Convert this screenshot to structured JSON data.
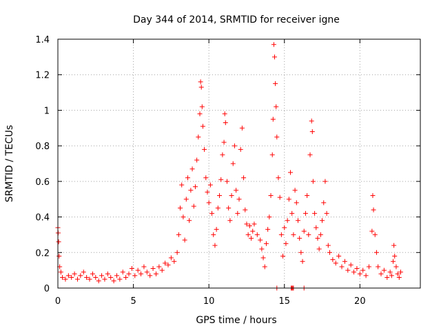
{
  "chart_data": {
    "type": "scatter",
    "title": "Day 344 of 2014, SRMTID for receiver igne",
    "xlabel": "GPS time / hours",
    "ylabel": "SRMTID / TECUs",
    "xlim": [
      0,
      24
    ],
    "ylim": [
      0,
      1.4
    ],
    "xticks": [
      0,
      5,
      10,
      15,
      20
    ],
    "yticks": [
      0,
      0.2,
      0.4,
      0.6,
      0.8,
      1,
      1.2,
      1.4
    ],
    "xtick_labels": [
      "0",
      "5",
      "10",
      "15",
      "20"
    ],
    "ytick_labels": [
      "0",
      "0.2",
      "0.4",
      "0.6",
      "0.8",
      "1",
      "1.2",
      "1.4"
    ],
    "grid": true,
    "marker": "plus",
    "color": "#ff0000",
    "series": [
      {
        "name": "SRMTID",
        "points": [
          [
            0.0,
            0.34
          ],
          [
            0.02,
            0.31
          ],
          [
            0.05,
            0.26
          ],
          [
            0.08,
            0.18
          ],
          [
            0.12,
            0.12
          ],
          [
            0.2,
            0.09
          ],
          [
            0.3,
            0.06
          ],
          [
            0.5,
            0.05
          ],
          [
            0.7,
            0.07
          ],
          [
            0.9,
            0.06
          ],
          [
            1.1,
            0.08
          ],
          [
            1.3,
            0.05
          ],
          [
            1.5,
            0.07
          ],
          [
            1.7,
            0.09
          ],
          [
            1.9,
            0.06
          ],
          [
            2.1,
            0.05
          ],
          [
            2.3,
            0.08
          ],
          [
            2.5,
            0.06
          ],
          [
            2.7,
            0.04
          ],
          [
            2.9,
            0.07
          ],
          [
            3.1,
            0.05
          ],
          [
            3.3,
            0.08
          ],
          [
            3.5,
            0.06
          ],
          [
            3.7,
            0.04
          ],
          [
            3.9,
            0.07
          ],
          [
            4.1,
            0.05
          ],
          [
            4.3,
            0.09
          ],
          [
            4.5,
            0.06
          ],
          [
            4.7,
            0.08
          ],
          [
            4.9,
            0.11
          ],
          [
            5.1,
            0.07
          ],
          [
            5.3,
            0.1
          ],
          [
            5.5,
            0.08
          ],
          [
            5.7,
            0.12
          ],
          [
            5.9,
            0.09
          ],
          [
            6.1,
            0.07
          ],
          [
            6.3,
            0.11
          ],
          [
            6.5,
            0.08
          ],
          [
            6.7,
            0.12
          ],
          [
            6.9,
            0.1
          ],
          [
            7.1,
            0.14
          ],
          [
            7.3,
            0.13
          ],
          [
            7.5,
            0.17
          ],
          [
            7.7,
            0.15
          ],
          [
            7.9,
            0.2
          ],
          [
            8.0,
            0.3
          ],
          [
            8.1,
            0.45
          ],
          [
            8.2,
            0.58
          ],
          [
            8.3,
            0.4
          ],
          [
            8.4,
            0.27
          ],
          [
            8.5,
            0.5
          ],
          [
            8.6,
            0.62
          ],
          [
            8.7,
            0.38
          ],
          [
            8.8,
            0.55
          ],
          [
            8.9,
            0.67
          ],
          [
            9.0,
            0.46
          ],
          [
            9.1,
            0.57
          ],
          [
            9.2,
            0.72
          ],
          [
            9.3,
            0.85
          ],
          [
            9.4,
            0.98
          ],
          [
            9.45,
            1.16
          ],
          [
            9.5,
            1.13
          ],
          [
            9.55,
            1.02
          ],
          [
            9.6,
            0.91
          ],
          [
            9.7,
            0.78
          ],
          [
            9.8,
            0.62
          ],
          [
            9.9,
            0.54
          ],
          [
            10.0,
            0.48
          ],
          [
            10.1,
            0.58
          ],
          [
            10.2,
            0.42
          ],
          [
            10.3,
            0.3
          ],
          [
            10.4,
            0.24
          ],
          [
            10.5,
            0.33
          ],
          [
            10.6,
            0.45
          ],
          [
            10.7,
            0.52
          ],
          [
            10.8,
            0.61
          ],
          [
            10.9,
            0.75
          ],
          [
            11.0,
            0.82
          ],
          [
            11.05,
            0.98
          ],
          [
            11.1,
            0.93
          ],
          [
            11.2,
            0.6
          ],
          [
            11.3,
            0.45
          ],
          [
            11.4,
            0.38
          ],
          [
            11.5,
            0.52
          ],
          [
            11.6,
            0.7
          ],
          [
            11.7,
            0.8
          ],
          [
            11.8,
            0.55
          ],
          [
            11.9,
            0.42
          ],
          [
            12.0,
            0.5
          ],
          [
            12.1,
            0.78
          ],
          [
            12.2,
            0.9
          ],
          [
            12.3,
            0.62
          ],
          [
            12.4,
            0.44
          ],
          [
            12.5,
            0.36
          ],
          [
            12.6,
            0.3
          ],
          [
            12.7,
            0.35
          ],
          [
            12.8,
            0.28
          ],
          [
            12.9,
            0.32
          ],
          [
            13.0,
            0.36
          ],
          [
            13.2,
            0.3
          ],
          [
            13.4,
            0.27
          ],
          [
            13.5,
            0.22
          ],
          [
            13.6,
            0.17
          ],
          [
            13.7,
            0.12
          ],
          [
            13.8,
            0.25
          ],
          [
            13.9,
            0.33
          ],
          [
            14.0,
            0.4
          ],
          [
            14.1,
            0.52
          ],
          [
            14.2,
            0.75
          ],
          [
            14.25,
            0.95
          ],
          [
            14.3,
            1.37
          ],
          [
            14.35,
            1.3
          ],
          [
            14.4,
            1.15
          ],
          [
            14.45,
            1.02
          ],
          [
            14.5,
            0.85
          ],
          [
            14.6,
            0.62
          ],
          [
            14.7,
            0.51
          ],
          [
            14.8,
            0.3
          ],
          [
            14.9,
            0.18
          ],
          [
            15.0,
            0.34
          ],
          [
            15.1,
            0.25
          ],
          [
            15.2,
            0.38
          ],
          [
            15.3,
            0.5
          ],
          [
            15.4,
            0.65
          ],
          [
            15.5,
            0.42
          ],
          [
            15.6,
            0.3
          ],
          [
            15.7,
            0.55
          ],
          [
            15.8,
            0.48
          ],
          [
            15.9,
            0.38
          ],
          [
            16.0,
            0.28
          ],
          [
            16.1,
            0.2
          ],
          [
            16.2,
            0.15
          ],
          [
            16.3,
            0.32
          ],
          [
            16.4,
            0.42
          ],
          [
            16.5,
            0.52
          ],
          [
            16.6,
            0.3
          ],
          [
            16.7,
            0.75
          ],
          [
            16.8,
            0.94
          ],
          [
            16.85,
            0.88
          ],
          [
            16.9,
            0.6
          ],
          [
            17.0,
            0.42
          ],
          [
            17.1,
            0.34
          ],
          [
            17.2,
            0.28
          ],
          [
            17.3,
            0.22
          ],
          [
            17.4,
            0.3
          ],
          [
            17.5,
            0.38
          ],
          [
            17.6,
            0.48
          ],
          [
            17.7,
            0.6
          ],
          [
            17.8,
            0.42
          ],
          [
            17.9,
            0.24
          ],
          [
            18.0,
            0.2
          ],
          [
            18.2,
            0.16
          ],
          [
            18.4,
            0.14
          ],
          [
            18.6,
            0.18
          ],
          [
            18.8,
            0.12
          ],
          [
            19.0,
            0.15
          ],
          [
            19.2,
            0.1
          ],
          [
            19.4,
            0.13
          ],
          [
            19.6,
            0.09
          ],
          [
            19.8,
            0.11
          ],
          [
            20.0,
            0.08
          ],
          [
            20.2,
            0.1
          ],
          [
            20.4,
            0.07
          ],
          [
            20.6,
            0.12
          ],
          [
            20.8,
            0.32
          ],
          [
            20.85,
            0.52
          ],
          [
            20.9,
            0.44
          ],
          [
            21.0,
            0.3
          ],
          [
            21.1,
            0.2
          ],
          [
            21.2,
            0.12
          ],
          [
            21.4,
            0.08
          ],
          [
            21.6,
            0.1
          ],
          [
            21.8,
            0.06
          ],
          [
            22.0,
            0.09
          ],
          [
            22.1,
            0.07
          ],
          [
            22.2,
            0.15
          ],
          [
            22.25,
            0.24
          ],
          [
            22.3,
            0.18
          ],
          [
            22.4,
            0.12
          ],
          [
            22.5,
            0.08
          ],
          [
            22.6,
            0.06
          ],
          [
            22.7,
            0.09
          ],
          [
            14.5,
            0.0
          ],
          [
            15.45,
            0.0
          ],
          [
            15.5,
            0.0
          ],
          [
            15.55,
            0.0
          ],
          [
            15.6,
            0.0
          ],
          [
            16.3,
            0.0
          ]
        ]
      }
    ]
  }
}
